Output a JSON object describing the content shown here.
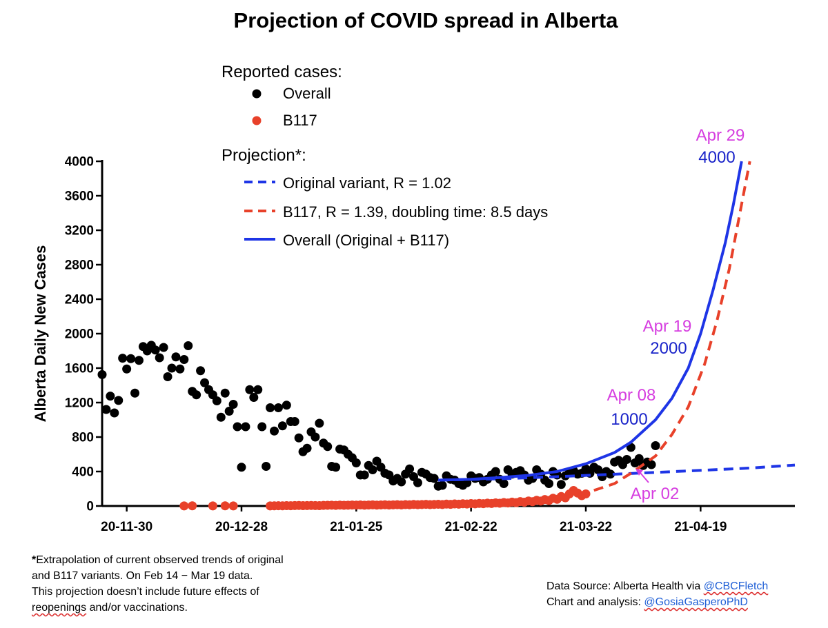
{
  "chart_data": {
    "type": "scatter",
    "title": "Projection of COVID spread in Alberta",
    "ylabel": "Alberta Daily New Cases",
    "xlabel": "",
    "ylim": [
      0,
      4000
    ],
    "yticks": [
      "0",
      "400",
      "800",
      "1200",
      "1600",
      "2000",
      "2400",
      "2800",
      "3200",
      "3600",
      "4000"
    ],
    "xlim": [
      "2020-11-24",
      "2021-05-12"
    ],
    "xticks": [
      {
        "date": "2020-11-30",
        "label": "20-11-30"
      },
      {
        "date": "2020-12-28",
        "label": "20-12-28"
      },
      {
        "date": "2021-01-25",
        "label": "21-01-25"
      },
      {
        "date": "2021-02-22",
        "label": "21-02-22"
      },
      {
        "date": "2021-03-22",
        "label": "21-03-22"
      },
      {
        "date": "2021-04-19",
        "label": "21-04-19"
      }
    ],
    "legend": {
      "reported_heading": "Reported cases:",
      "projection_heading": "Projection*:",
      "entries": [
        {
          "label": "Overall",
          "color": "#000000",
          "style": "dot"
        },
        {
          "label": "B117",
          "color": "#e8412a",
          "style": "dot"
        },
        {
          "label": "Original variant, R = 1.02",
          "color": "#1e35e6",
          "style": "dashed"
        },
        {
          "label": "B117, R = 1.39, doubling time: 8.5 days",
          "color": "#e8412a",
          "style": "dashed"
        },
        {
          "label": "Overall (Original + B117)",
          "color": "#1e35e6",
          "style": "solid"
        }
      ]
    },
    "colors": {
      "overall": "#000000",
      "b117": "#e8412a",
      "projection_blue": "#1e35e6",
      "annotation_date": "#d63ee0",
      "annotation_value": "#1a24c9"
    },
    "series": [
      {
        "name": "Overall",
        "start_date": "2020-11-24",
        "values": [
          1525,
          1120,
          1275,
          1080,
          1225,
          1715,
          1590,
          1710,
          1310,
          1690,
          1850,
          1800,
          1865,
          1810,
          1720,
          1840,
          1500,
          1600,
          1730,
          1590,
          1700,
          1860,
          1330,
          1290,
          1570,
          1430,
          1350,
          1290,
          1220,
          1030,
          1310,
          1100,
          1180,
          920,
          450,
          920,
          1350,
          1260,
          1350,
          920,
          460,
          1140,
          870,
          1140,
          930,
          1170,
          980,
          980,
          790,
          630,
          670,
          860,
          800,
          960,
          730,
          690,
          460,
          450,
          660,
          650,
          600,
          560,
          500,
          360,
          360,
          470,
          420,
          520,
          450,
          380,
          360,
          290,
          320,
          280,
          370,
          430,
          340,
          270,
          390,
          370,
          330,
          320,
          230,
          240,
          350,
          310,
          300,
          260,
          240,
          270,
          350,
          320,
          330,
          280,
          310,
          360,
          400,
          310,
          260,
          420,
          370,
          390,
          410,
          360,
          300,
          320,
          420,
          370,
          300,
          260,
          400,
          360,
          250,
          350,
          390,
          410,
          370,
          380,
          430,
          380,
          450,
          420,
          340,
          400,
          370,
          510,
          530,
          480,
          540,
          680,
          500,
          550,
          470,
          510,
          480,
          700
        ]
      },
      {
        "name": "B117",
        "points": [
          [
            "2020-12-14",
            1
          ],
          [
            "2020-12-16",
            2
          ],
          [
            "2020-12-21",
            1
          ],
          [
            "2020-12-24",
            2
          ],
          [
            "2020-12-26",
            1
          ],
          [
            "2021-01-04",
            1
          ],
          [
            "2021-01-05",
            2
          ],
          [
            "2021-01-06",
            3
          ],
          [
            "2021-01-07",
            2
          ],
          [
            "2021-01-08",
            4
          ],
          [
            "2021-01-09",
            3
          ],
          [
            "2021-01-10",
            5
          ],
          [
            "2021-01-11",
            6
          ],
          [
            "2021-01-12",
            4
          ],
          [
            "2021-01-13",
            5
          ],
          [
            "2021-01-14",
            6
          ],
          [
            "2021-01-15",
            5
          ],
          [
            "2021-01-16",
            4
          ],
          [
            "2021-01-17",
            7
          ],
          [
            "2021-01-18",
            8
          ],
          [
            "2021-01-19",
            9
          ],
          [
            "2021-01-20",
            7
          ],
          [
            "2021-01-21",
            10
          ],
          [
            "2021-01-22",
            8
          ],
          [
            "2021-01-23",
            9
          ],
          [
            "2021-01-24",
            11
          ],
          [
            "2021-01-25",
            10
          ],
          [
            "2021-01-26",
            12
          ],
          [
            "2021-01-27",
            9
          ],
          [
            "2021-01-28",
            11
          ],
          [
            "2021-01-29",
            13
          ],
          [
            "2021-01-30",
            10
          ],
          [
            "2021-01-31",
            12
          ],
          [
            "2021-02-01",
            14
          ],
          [
            "2021-02-02",
            11
          ],
          [
            "2021-02-03",
            13
          ],
          [
            "2021-02-04",
            15
          ],
          [
            "2021-02-05",
            12
          ],
          [
            "2021-02-06",
            16
          ],
          [
            "2021-02-07",
            14
          ],
          [
            "2021-02-08",
            18
          ],
          [
            "2021-02-09",
            15
          ],
          [
            "2021-02-10",
            17
          ],
          [
            "2021-02-11",
            19
          ],
          [
            "2021-02-12",
            16
          ],
          [
            "2021-02-13",
            18
          ],
          [
            "2021-02-14",
            20
          ],
          [
            "2021-02-15",
            17
          ],
          [
            "2021-02-16",
            22
          ],
          [
            "2021-02-17",
            19
          ],
          [
            "2021-02-18",
            24
          ],
          [
            "2021-02-19",
            21
          ],
          [
            "2021-02-20",
            26
          ],
          [
            "2021-02-21",
            23
          ],
          [
            "2021-02-22",
            28
          ],
          [
            "2021-02-23",
            25
          ],
          [
            "2021-02-24",
            30
          ],
          [
            "2021-02-25",
            27
          ],
          [
            "2021-02-26",
            33
          ],
          [
            "2021-02-27",
            29
          ],
          [
            "2021-02-28",
            36
          ],
          [
            "2021-03-01",
            32
          ],
          [
            "2021-03-02",
            40
          ],
          [
            "2021-03-03",
            35
          ],
          [
            "2021-03-04",
            45
          ],
          [
            "2021-03-05",
            39
          ],
          [
            "2021-03-06",
            51
          ],
          [
            "2021-03-07",
            44
          ],
          [
            "2021-03-08",
            58
          ],
          [
            "2021-03-09",
            50
          ],
          [
            "2021-03-10",
            66
          ],
          [
            "2021-03-11",
            57
          ],
          [
            "2021-03-12",
            75
          ],
          [
            "2021-03-13",
            64
          ],
          [
            "2021-03-14",
            90
          ],
          [
            "2021-03-15",
            78
          ],
          [
            "2021-03-16",
            110
          ],
          [
            "2021-03-17",
            95
          ],
          [
            "2021-03-18",
            140
          ],
          [
            "2021-03-19",
            180
          ],
          [
            "2021-03-20",
            150
          ],
          [
            "2021-03-21",
            120
          ],
          [
            "2021-03-22",
            140
          ]
        ]
      },
      {
        "name": "Original variant, R = 1.02",
        "points": [
          [
            "2021-02-14",
            300
          ],
          [
            "2021-03-01",
            315
          ],
          [
            "2021-03-15",
            340
          ],
          [
            "2021-04-01",
            375
          ],
          [
            "2021-04-15",
            405
          ],
          [
            "2021-05-01",
            440
          ],
          [
            "2021-05-12",
            475
          ]
        ]
      },
      {
        "name": "B117, R = 1.39, doubling time: 8.5 days",
        "points": [
          [
            "2021-03-01",
            40
          ],
          [
            "2021-03-08",
            60
          ],
          [
            "2021-03-15",
            90
          ],
          [
            "2021-03-22",
            150
          ],
          [
            "2021-03-29",
            260
          ],
          [
            "2021-04-02",
            380
          ],
          [
            "2021-04-08",
            580
          ],
          [
            "2021-04-12",
            830
          ],
          [
            "2021-04-16",
            1150
          ],
          [
            "2021-04-20",
            1650
          ],
          [
            "2021-04-23",
            2150
          ],
          [
            "2021-04-26",
            2750
          ],
          [
            "2021-04-28",
            3250
          ],
          [
            "2021-04-30",
            3750
          ],
          [
            "2021-05-01",
            4000
          ]
        ]
      },
      {
        "name": "Overall (Original + B117)",
        "points": [
          [
            "2021-02-14",
            300
          ],
          [
            "2021-02-22",
            310
          ],
          [
            "2021-03-01",
            330
          ],
          [
            "2021-03-08",
            355
          ],
          [
            "2021-03-15",
            400
          ],
          [
            "2021-03-22",
            490
          ],
          [
            "2021-03-29",
            620
          ],
          [
            "2021-04-02",
            740
          ],
          [
            "2021-04-08",
            1000
          ],
          [
            "2021-04-12",
            1250
          ],
          [
            "2021-04-16",
            1600
          ],
          [
            "2021-04-19",
            2000
          ],
          [
            "2021-04-22",
            2500
          ],
          [
            "2021-04-25",
            3050
          ],
          [
            "2021-04-27",
            3500
          ],
          [
            "2021-04-29",
            4000
          ]
        ]
      }
    ],
    "annotations": [
      {
        "date_label": "Apr 29",
        "value_label": "4000"
      },
      {
        "date_label": "Apr 19",
        "value_label": "2000"
      },
      {
        "date_label": "Apr 08",
        "value_label": "1000"
      },
      {
        "date_label": "Apr 02"
      }
    ]
  },
  "footnote": {
    "star": "*",
    "line1": "Extrapolation of current observed trends of original",
    "line2": "and B117 variants. On Feb 14 − Mar 19 data.",
    "line3": "This projection doesn’t include future effects of",
    "line4_a": "reopenings",
    "line4_b": " and/or vaccinations."
  },
  "credits": {
    "source_prefix": "Data Source: Alberta Health via ",
    "source_handle": "@CBCFletch",
    "chart_prefix": "Chart and analysis: ",
    "chart_handle": "@GosiaGasperoPhD"
  }
}
